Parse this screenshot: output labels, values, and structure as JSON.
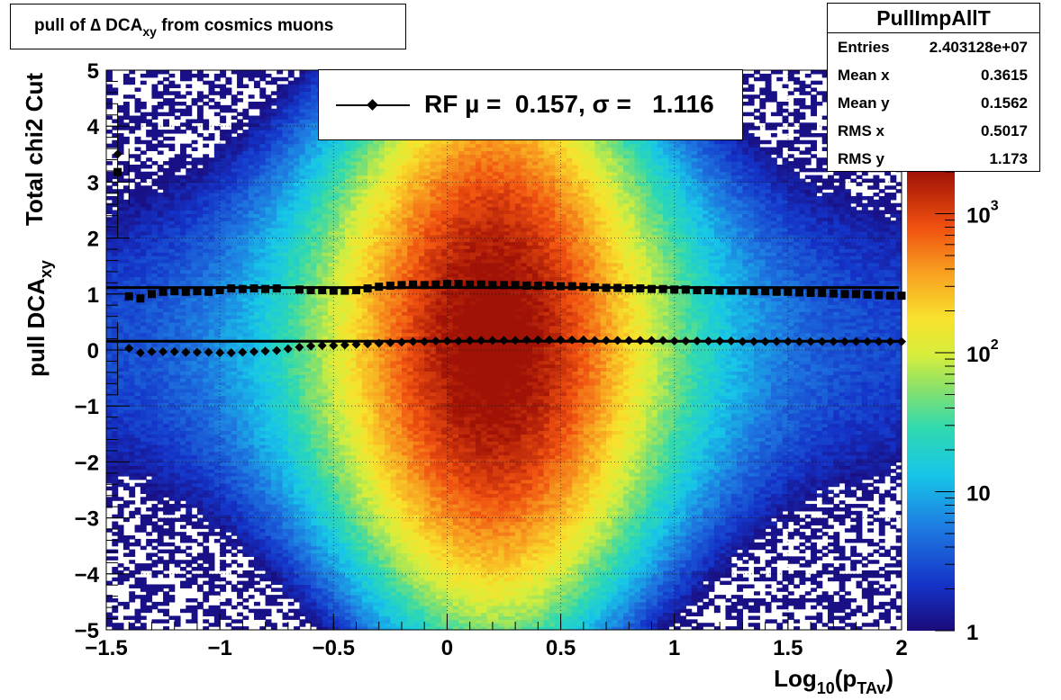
{
  "title": {
    "prefix": "pull of ",
    "symbol": "∆",
    "main": " DCA",
    "sub": "xy",
    "suffix": " from cosmics muons"
  },
  "stats": {
    "name": "PullImpAllT",
    "rows": [
      {
        "key": "Entries",
        "value": "2.403128e+07"
      },
      {
        "key": "Mean x",
        "value": "0.3615"
      },
      {
        "key": "Mean y",
        "value": "0.1562"
      },
      {
        "key": "RMS x",
        "value": "0.5017"
      },
      {
        "key": "RMS y",
        "value": "1.173"
      }
    ]
  },
  "legend": {
    "text": "RF µ =  0.157, σ =   1.116"
  },
  "chart_data": {
    "type": "heatmap",
    "xlabel": "Log",
    "xlabel_sub1": "10",
    "xlabel_mid": "(p",
    "xlabel_sub2": "TAv",
    "xlabel_end": ")",
    "ylabel_line1": "Total chi2 Cut",
    "ylabel_line2": "pull DCA",
    "ylabel_line2_sub": "xy",
    "xlim": [
      -1.5,
      2
    ],
    "ylim": [
      -5,
      5
    ],
    "x_ticks": [
      {
        "value": -1.5,
        "label": "−1.5"
      },
      {
        "value": -1,
        "label": "−1"
      },
      {
        "value": -0.5,
        "label": "−0.5"
      },
      {
        "value": 0,
        "label": "0"
      },
      {
        "value": 0.5,
        "label": "0.5"
      },
      {
        "value": 1,
        "label": "1"
      },
      {
        "value": 1.5,
        "label": "1.5"
      },
      {
        "value": 2,
        "label": "2"
      }
    ],
    "y_ticks": [
      {
        "value": 5,
        "label": "5"
      },
      {
        "value": 4,
        "label": "4"
      },
      {
        "value": 3,
        "label": "3"
      },
      {
        "value": 2,
        "label": "2"
      },
      {
        "value": 1,
        "label": "1"
      },
      {
        "value": 0,
        "label": "0"
      },
      {
        "value": -1,
        "label": "−1"
      },
      {
        "value": -2,
        "label": "−2"
      },
      {
        "value": -3,
        "label": "−3"
      },
      {
        "value": -4,
        "label": "−4"
      },
      {
        "value": -5,
        "label": "−5"
      }
    ],
    "grid": true,
    "z_scale": "log",
    "z_range": [
      1,
      2000
    ],
    "z_ticks": [
      {
        "value": 1,
        "label": "1"
      },
      {
        "value": 10,
        "label": "10"
      },
      {
        "value": 100,
        "label": "10",
        "exp": "2"
      },
      {
        "value": 1000,
        "label": "10",
        "exp": "3"
      }
    ],
    "colormap": "rainbow",
    "distribution": {
      "x_peak": 0.2,
      "y_mean": 0.16,
      "y_sigma": 1.17
    },
    "lines": [
      {
        "name": "mean-line",
        "y": 0.157
      },
      {
        "name": "sigma-line",
        "y": 1.116
      }
    ],
    "series": [
      {
        "name": "sigma",
        "marker": "square",
        "x": [
          -1.45,
          -1.4,
          -1.35,
          -1.3,
          -1.25,
          -1.2,
          -1.15,
          -1.1,
          -1.05,
          -1.0,
          -0.95,
          -0.9,
          -0.85,
          -0.8,
          -0.75,
          -0.65,
          -0.6,
          -0.55,
          -0.5,
          -0.45,
          -0.4,
          -0.35,
          -0.3,
          -0.25,
          -0.2,
          -0.15,
          -0.1,
          -0.05,
          0.0,
          0.05,
          0.1,
          0.15,
          0.2,
          0.25,
          0.3,
          0.35,
          0.4,
          0.45,
          0.5,
          0.55,
          0.6,
          0.65,
          0.7,
          0.75,
          0.8,
          0.85,
          0.9,
          0.95,
          1.0,
          1.05,
          1.1,
          1.15,
          1.2,
          1.25,
          1.3,
          1.35,
          1.4,
          1.45,
          1.5,
          1.55,
          1.6,
          1.65,
          1.7,
          1.75,
          1.8,
          1.85,
          1.9,
          1.95,
          2.0
        ],
        "y": [
          3.18,
          0.96,
          0.92,
          1.0,
          1.04,
          1.05,
          1.04,
          1.05,
          1.04,
          1.07,
          1.1,
          1.09,
          1.1,
          1.09,
          1.1,
          1.08,
          1.07,
          1.07,
          1.06,
          1.06,
          1.07,
          1.1,
          1.13,
          1.15,
          1.16,
          1.17,
          1.16,
          1.17,
          1.18,
          1.18,
          1.17,
          1.17,
          1.16,
          1.16,
          1.16,
          1.15,
          1.15,
          1.15,
          1.14,
          1.14,
          1.13,
          1.12,
          1.11,
          1.11,
          1.1,
          1.1,
          1.09,
          1.09,
          1.08,
          1.08,
          1.07,
          1.07,
          1.06,
          1.06,
          1.06,
          1.05,
          1.05,
          1.04,
          1.04,
          1.03,
          1.02,
          1.02,
          1.01,
          1.0,
          1.0,
          0.99,
          0.98,
          0.97,
          0.97
        ]
      },
      {
        "name": "mean",
        "marker": "diamond",
        "x": [
          -1.45,
          -1.4,
          -1.35,
          -1.3,
          -1.25,
          -1.2,
          -1.15,
          -1.1,
          -1.05,
          -1.0,
          -0.95,
          -0.9,
          -0.85,
          -0.8,
          -0.75,
          -0.7,
          -0.65,
          -0.6,
          -0.55,
          -0.5,
          -0.45,
          -0.4,
          -0.35,
          -0.3,
          -0.25,
          -0.2,
          -0.15,
          -0.1,
          -0.05,
          0.0,
          0.05,
          0.1,
          0.15,
          0.2,
          0.25,
          0.3,
          0.35,
          0.4,
          0.45,
          0.5,
          0.55,
          0.6,
          0.65,
          0.7,
          0.75,
          0.8,
          0.85,
          0.9,
          0.95,
          1.0,
          1.05,
          1.1,
          1.15,
          1.2,
          1.25,
          1.3,
          1.35,
          1.4,
          1.45,
          1.5,
          1.55,
          1.6,
          1.65,
          1.7,
          1.75,
          1.8,
          1.85,
          1.9,
          1.95,
          2.0
        ],
        "y": [
          3.5,
          0.03,
          -0.05,
          -0.03,
          -0.03,
          -0.03,
          -0.04,
          -0.04,
          -0.04,
          -0.05,
          -0.05,
          -0.04,
          -0.03,
          -0.02,
          -0.01,
          0.02,
          0.05,
          0.07,
          0.08,
          0.08,
          0.09,
          0.1,
          0.11,
          0.12,
          0.13,
          0.14,
          0.15,
          0.15,
          0.16,
          0.16,
          0.16,
          0.17,
          0.17,
          0.17,
          0.17,
          0.17,
          0.18,
          0.18,
          0.18,
          0.18,
          0.18,
          0.18,
          0.17,
          0.17,
          0.17,
          0.17,
          0.17,
          0.17,
          0.17,
          0.16,
          0.16,
          0.16,
          0.16,
          0.16,
          0.16,
          0.15,
          0.15,
          0.15,
          0.15,
          0.15,
          0.15,
          0.15,
          0.15,
          0.15,
          0.15,
          0.15,
          0.15,
          0.15,
          0.15,
          0.15
        ]
      }
    ]
  }
}
